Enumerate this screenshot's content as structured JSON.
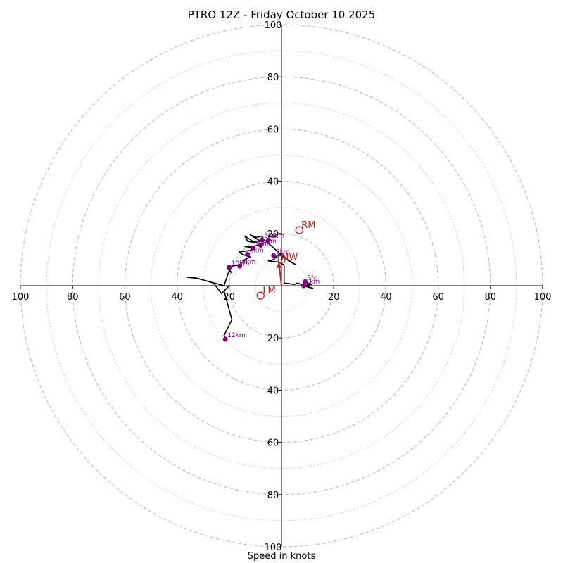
{
  "chart_data": {
    "type": "hodograph",
    "title": "PTRO 12Z - Friday October 10 2025",
    "xlabel": "Speed in knots",
    "range": [
      -100,
      100
    ],
    "rings_major": [
      20,
      40,
      60,
      80,
      100
    ],
    "rings_minor": [
      10,
      30,
      50,
      70,
      90
    ],
    "x_tick_labels": [
      "100",
      "80",
      "60",
      "40",
      "20",
      "20",
      "40",
      "60",
      "80",
      "100"
    ],
    "x_tick_values": [
      -100,
      -80,
      -60,
      -40,
      -20,
      20,
      40,
      60,
      80,
      100
    ],
    "y_tick_labels": [
      "100",
      "80",
      "60",
      "40",
      "20",
      "20",
      "40",
      "60",
      "80",
      "100"
    ],
    "y_tick_values": [
      100,
      80,
      60,
      40,
      20,
      -20,
      -40,
      -60,
      -80,
      -100
    ],
    "hodograph_trace": [
      [
        9,
        1.5
      ],
      [
        11.5,
        0.5
      ],
      [
        10,
        0.3
      ],
      [
        8,
        0
      ],
      [
        12,
        -1
      ],
      [
        9,
        0
      ],
      [
        6,
        1
      ],
      [
        5,
        0.5
      ],
      [
        1,
        1
      ],
      [
        1,
        8
      ],
      [
        -1,
        9
      ],
      [
        -5,
        9.5
      ],
      [
        -3,
        10
      ],
      [
        -1,
        12
      ],
      [
        5.5,
        8
      ],
      [
        2,
        10
      ],
      [
        -7,
        18
      ],
      [
        -7.5,
        19
      ],
      [
        -9.5,
        18.5
      ],
      [
        -12,
        19.5
      ],
      [
        -8,
        17
      ],
      [
        -11,
        17
      ],
      [
        -14,
        19
      ],
      [
        -13,
        17
      ],
      [
        -7,
        16
      ],
      [
        -11,
        15
      ],
      [
        -14,
        15
      ],
      [
        -10,
        14.5
      ],
      [
        -12,
        13.5
      ],
      [
        -16,
        13
      ],
      [
        -15,
        12
      ],
      [
        -12,
        11
      ],
      [
        -14,
        10
      ],
      [
        -16,
        8
      ],
      [
        -19,
        7.5
      ],
      [
        -20,
        5.5
      ],
      [
        -19,
        5
      ],
      [
        -20,
        6
      ],
      [
        -21,
        3
      ],
      [
        -22,
        0
      ],
      [
        -33,
        3
      ],
      [
        -36,
        3.2
      ],
      [
        -32,
        2.8
      ],
      [
        -26,
        1
      ],
      [
        -23,
        -3
      ],
      [
        -20,
        0
      ],
      [
        -22,
        -2
      ],
      [
        -19,
        -13
      ],
      [
        -22,
        -19
      ],
      [
        -21.5,
        -20
      ]
    ],
    "height_markers": [
      {
        "label": "Sfc",
        "u": 9,
        "v": 1.5
      },
      {
        "label": "1km",
        "u": 8.5,
        "v": 0
      },
      {
        "label": "3km",
        "u": -3,
        "v": 11.5
      },
      {
        "label": "4km",
        "u": -5,
        "v": 17.5
      },
      {
        "label": "5km",
        "u": -7.5,
        "v": 17.5
      },
      {
        "label": "6km",
        "u": -8,
        "v": 15.5
      },
      {
        "label": "7km",
        "u": -11,
        "v": 14.5
      },
      {
        "label": "8km",
        "u": -13,
        "v": 12
      },
      {
        "label": "9km",
        "u": -16,
        "v": 7.5
      },
      {
        "label": "10km",
        "u": -20,
        "v": 7
      },
      {
        "label": "12km",
        "u": -21.5,
        "v": -20.5
      }
    ],
    "storm_motion": {
      "RM": {
        "label": "RM",
        "u": 6.8,
        "v": 21.3
      },
      "LM": {
        "label": "LM",
        "u": -8,
        "v": -3.8
      },
      "MW": {
        "label": "MW",
        "u": -1,
        "v": 9
      }
    },
    "colors": {
      "trace": "#000000",
      "marker": "#800080",
      "storm": "#b22222",
      "ring": "#bbbbbb"
    }
  }
}
